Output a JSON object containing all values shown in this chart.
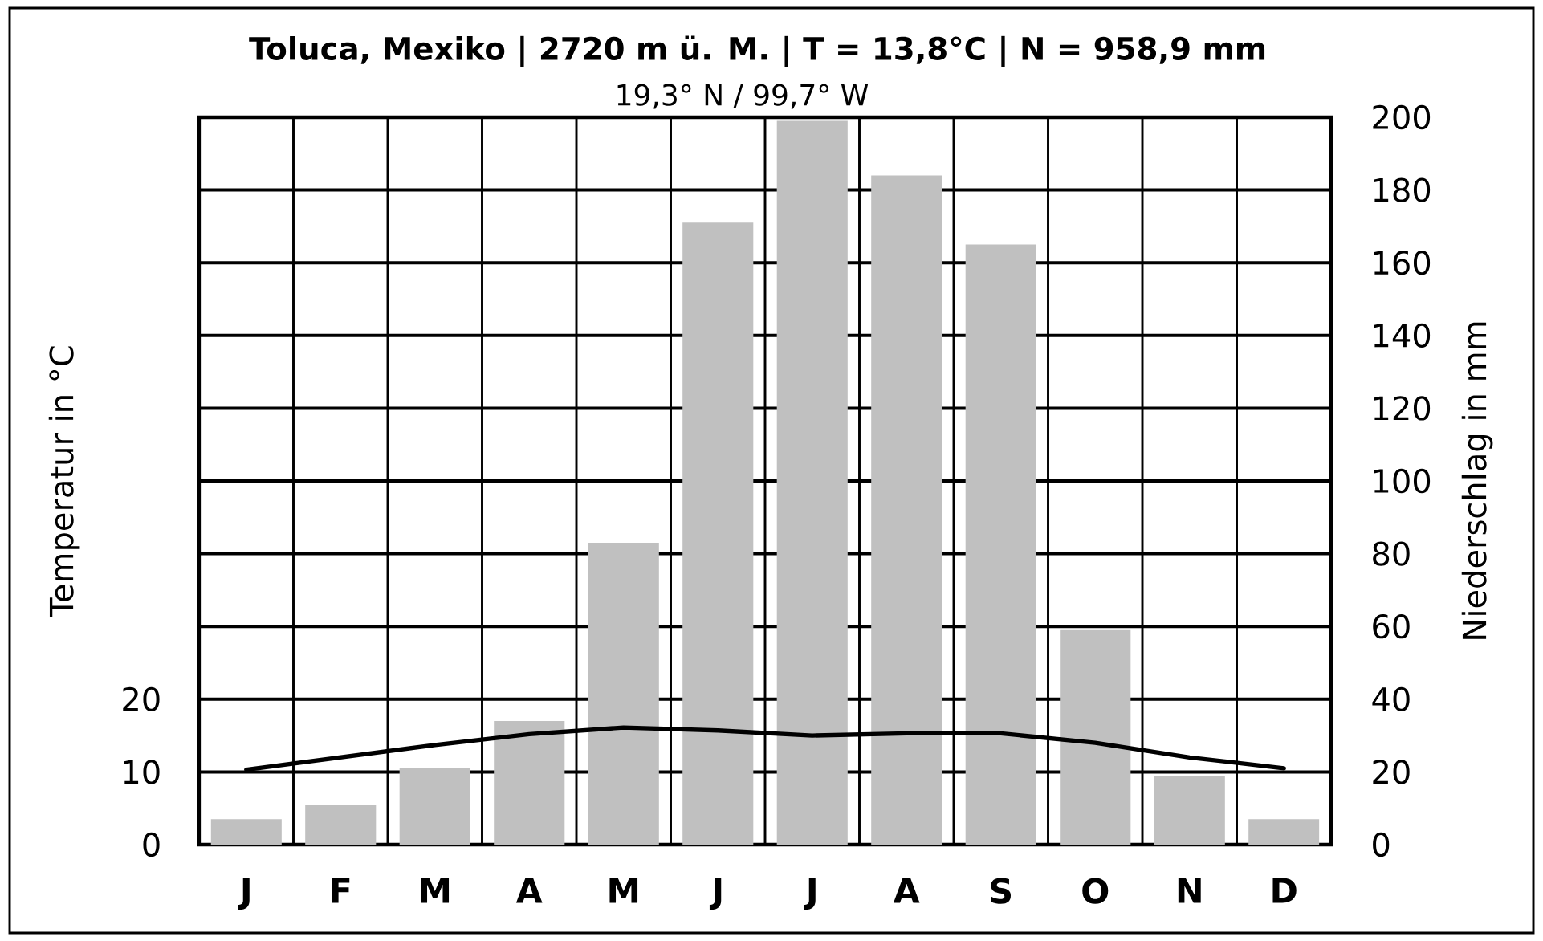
{
  "chart_data": {
    "type": "bar",
    "title": "Toluca, Mexiko | 2720 m ü. M. | T = 13,8°C | N = 958,9 mm",
    "subtitle": "19,3° N / 99,7° W",
    "ylabel": "Temperatur in °C",
    "y2label": "Niederschlag in mm",
    "categories": [
      "J",
      "F",
      "M",
      "A",
      "M",
      "J",
      "J",
      "A",
      "S",
      "O",
      "N",
      "D"
    ],
    "series": [
      {
        "axis": "y2",
        "color": "#c0c0c0",
        "values": [
          7,
          11,
          21,
          34,
          83,
          171,
          199,
          184,
          165,
          59,
          19,
          7
        ]
      },
      {
        "type": "line",
        "axis": "y",
        "color": "#000000",
        "values": [
          10.3,
          12.0,
          13.7,
          15.2,
          16.1,
          15.7,
          15.0,
          15.3,
          15.3,
          14.0,
          12.0,
          10.5
        ]
      }
    ],
    "ylim": [
      0,
      100
    ],
    "yticks": [
      0,
      10,
      20
    ],
    "y2lim": [
      0,
      200
    ],
    "y2ticks": [
      0,
      20,
      40,
      60,
      80,
      100,
      120,
      140,
      160,
      180,
      200
    ],
    "grid": true
  }
}
